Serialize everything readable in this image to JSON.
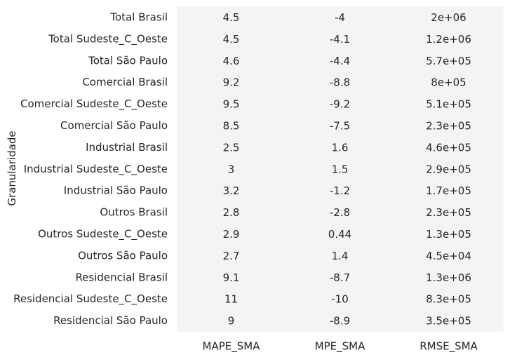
{
  "chart_data": {
    "type": "heatmap",
    "title": "",
    "xlabel": "",
    "ylabel": "Granularidade",
    "colorbar": false,
    "cell_color": "#f4f4f4",
    "text_color": "#262626",
    "columns": [
      "MAPE_SMA",
      "MPE_SMA",
      "RMSE_SMA"
    ],
    "rows": [
      "Total Brasil",
      "Total Sudeste_C_Oeste",
      "Total São Paulo",
      "Comercial Brasil",
      "Comercial Sudeste_C_Oeste",
      "Comercial São Paulo",
      "Industrial Brasil",
      "Industrial Sudeste_C_Oeste",
      "Industrial São Paulo",
      "Outros Brasil",
      "Outros Sudeste_C_Oeste",
      "Outros São Paulo",
      "Residencial Brasil",
      "Residencial Sudeste_C_Oeste",
      "Residencial São Paulo"
    ],
    "values": [
      [
        4.5,
        -4,
        2000000
      ],
      [
        4.5,
        -4.1,
        1200000
      ],
      [
        4.6,
        -4.4,
        570000
      ],
      [
        9.2,
        -8.8,
        800000
      ],
      [
        9.5,
        -9.2,
        510000
      ],
      [
        8.5,
        -7.5,
        230000
      ],
      [
        2.5,
        1.6,
        460000
      ],
      [
        3,
        1.5,
        290000
      ],
      [
        3.2,
        -1.2,
        170000
      ],
      [
        2.8,
        -2.8,
        230000
      ],
      [
        2.9,
        0.44,
        130000
      ],
      [
        2.7,
        1.4,
        45000
      ],
      [
        9.1,
        -8.7,
        1300000
      ],
      [
        11,
        -10,
        830000
      ],
      [
        9,
        -8.9,
        350000
      ]
    ],
    "annotations": [
      [
        "4.5",
        "-4",
        "2e+06"
      ],
      [
        "4.5",
        "-4.1",
        "1.2e+06"
      ],
      [
        "4.6",
        "-4.4",
        "5.7e+05"
      ],
      [
        "9.2",
        "-8.8",
        "8e+05"
      ],
      [
        "9.5",
        "-9.2",
        "5.1e+05"
      ],
      [
        "8.5",
        "-7.5",
        "2.3e+05"
      ],
      [
        "2.5",
        "1.6",
        "4.6e+05"
      ],
      [
        "3",
        "1.5",
        "2.9e+05"
      ],
      [
        "3.2",
        "-1.2",
        "1.7e+05"
      ],
      [
        "2.8",
        "-2.8",
        "2.3e+05"
      ],
      [
        "2.9",
        "0.44",
        "1.3e+05"
      ],
      [
        "2.7",
        "1.4",
        "4.5e+04"
      ],
      [
        "9.1",
        "-8.7",
        "1.3e+06"
      ],
      [
        "11",
        "-10",
        "8.3e+05"
      ],
      [
        "9",
        "-8.9",
        "3.5e+05"
      ]
    ]
  }
}
